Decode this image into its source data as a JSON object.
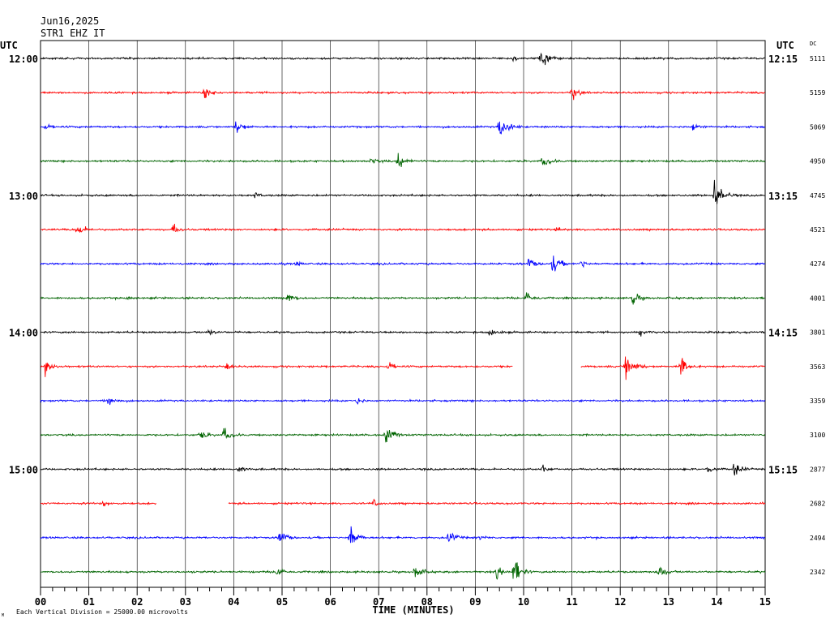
{
  "header": {
    "date": "Jun16,2025",
    "station": "STR1 EHZ IT",
    "utc_left": "UTC",
    "utc_right": "UTC",
    "dc_label": "DC"
  },
  "footer": {
    "scale_note": "Each Vertical Division = 25000.00 microvolts",
    "mark": "M"
  },
  "chart_data": {
    "type": "line",
    "title": "",
    "xlabel": "TIME (MINUTES)",
    "ylabel": "",
    "xlim": [
      0,
      15
    ],
    "x_ticks": [
      "00",
      "01",
      "02",
      "03",
      "04",
      "05",
      "06",
      "07",
      "08",
      "09",
      "10",
      "11",
      "12",
      "13",
      "14",
      "15"
    ],
    "colors": [
      "#000000",
      "#ff0000",
      "#0000ff",
      "#006400"
    ],
    "grid": true,
    "traces": [
      {
        "left_label": "12:00",
        "right_label": "12:15",
        "dc": "5111",
        "color": "#000000",
        "events": [
          [
            9.8,
            0.35,
            2
          ],
          [
            10.35,
            1.0,
            4
          ]
        ],
        "gaps": []
      },
      {
        "left_label": "",
        "right_label": "",
        "dc": "5159",
        "color": "#ff0000",
        "events": [
          [
            3.4,
            0.55,
            3
          ],
          [
            11.0,
            0.6,
            3
          ]
        ],
        "gaps": []
      },
      {
        "left_label": "",
        "right_label": "",
        "dc": "5069",
        "color": "#0000ff",
        "events": [
          [
            0.1,
            0.3,
            2
          ],
          [
            4.05,
            0.55,
            3
          ],
          [
            9.5,
            1.0,
            4
          ],
          [
            13.5,
            0.4,
            3
          ]
        ],
        "gaps": []
      },
      {
        "left_label": "",
        "right_label": "",
        "dc": "4950",
        "color": "#006400",
        "events": [
          [
            6.8,
            0.35,
            3
          ],
          [
            7.4,
            0.8,
            3
          ],
          [
            10.4,
            0.55,
            3
          ]
        ],
        "gaps": []
      },
      {
        "left_label": "13:00",
        "right_label": "13:15",
        "dc": "4745",
        "color": "#000000",
        "events": [
          [
            4.45,
            0.25,
            2
          ],
          [
            13.95,
            1.1,
            4
          ]
        ],
        "gaps": []
      },
      {
        "left_label": "",
        "right_label": "",
        "dc": "4521",
        "color": "#ff0000",
        "events": [
          [
            0.75,
            0.7,
            3
          ],
          [
            2.75,
            0.5,
            2
          ],
          [
            10.7,
            0.25,
            2
          ]
        ],
        "gaps": []
      },
      {
        "left_label": "",
        "right_label": "",
        "dc": "4274",
        "color": "#0000ff",
        "events": [
          [
            5.3,
            0.2,
            2
          ],
          [
            10.1,
            0.5,
            3
          ],
          [
            10.6,
            0.9,
            3
          ],
          [
            11.2,
            0.4,
            2
          ]
        ],
        "gaps": []
      },
      {
        "left_label": "",
        "right_label": "",
        "dc": "4001",
        "color": "#006400",
        "events": [
          [
            1.8,
            0.2,
            2
          ],
          [
            5.1,
            0.6,
            3
          ],
          [
            10.05,
            0.6,
            3
          ],
          [
            12.25,
            0.6,
            3
          ]
        ],
        "gaps": []
      },
      {
        "left_label": "14:00",
        "right_label": "14:15",
        "dc": "3801",
        "color": "#000000",
        "events": [
          [
            3.5,
            0.3,
            2
          ],
          [
            9.3,
            0.35,
            3
          ],
          [
            12.4,
            0.3,
            3
          ]
        ],
        "gaps": []
      },
      {
        "left_label": "",
        "right_label": "",
        "dc": "3563",
        "color": "#ff0000",
        "events": [
          [
            0.1,
            0.6,
            3
          ],
          [
            3.85,
            0.35,
            2
          ],
          [
            7.2,
            0.45,
            2
          ],
          [
            12.1,
            1.2,
            4
          ],
          [
            13.25,
            1.1,
            3
          ]
        ],
        "gaps": [
          [
            9.78,
            11.18
          ]
        ]
      },
      {
        "left_label": "",
        "right_label": "",
        "dc": "3359",
        "color": "#0000ff",
        "events": [
          [
            1.4,
            0.5,
            3
          ],
          [
            6.55,
            0.4,
            2
          ]
        ],
        "gaps": []
      },
      {
        "left_label": "",
        "right_label": "",
        "dc": "3100",
        "color": "#006400",
        "events": [
          [
            3.3,
            0.4,
            3
          ],
          [
            3.8,
            0.6,
            3
          ],
          [
            7.15,
            0.8,
            3
          ]
        ],
        "gaps": []
      },
      {
        "left_label": "15:00",
        "right_label": "15:15",
        "dc": "2877",
        "color": "#000000",
        "events": [
          [
            4.1,
            0.35,
            2
          ],
          [
            10.4,
            0.3,
            2
          ],
          [
            13.8,
            0.3,
            3
          ],
          [
            14.35,
            0.6,
            3
          ]
        ],
        "gaps": []
      },
      {
        "left_label": "",
        "right_label": "",
        "dc": "2682",
        "color": "#ff0000",
        "events": [
          [
            1.3,
            0.3,
            2
          ],
          [
            6.9,
            0.3,
            2
          ]
        ],
        "gaps": [
          [
            2.4,
            3.88
          ]
        ]
      },
      {
        "left_label": "",
        "right_label": "",
        "dc": "2494",
        "color": "#0000ff",
        "events": [
          [
            4.95,
            0.7,
            3
          ],
          [
            6.4,
            1.3,
            3
          ],
          [
            8.45,
            0.6,
            3
          ],
          [
            9.1,
            0.25,
            2
          ]
        ],
        "gaps": []
      },
      {
        "left_label": "",
        "right_label": "",
        "dc": "2342",
        "color": "#006400",
        "events": [
          [
            4.9,
            0.5,
            3
          ],
          [
            7.75,
            0.6,
            3
          ],
          [
            9.45,
            0.6,
            3
          ],
          [
            9.8,
            1.3,
            3
          ],
          [
            12.8,
            0.6,
            3
          ]
        ],
        "gaps": []
      }
    ]
  }
}
